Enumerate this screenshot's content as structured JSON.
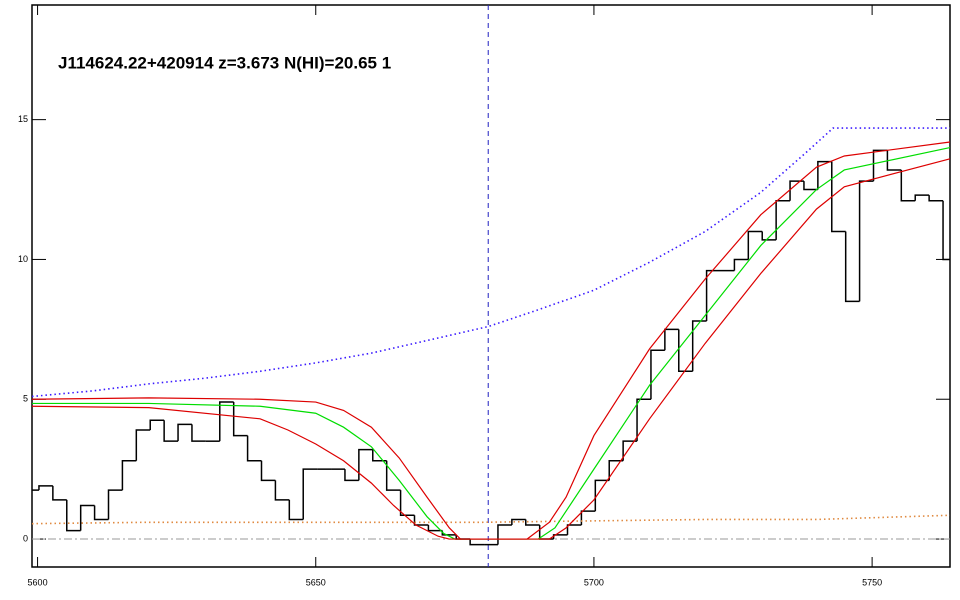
{
  "chart_data": {
    "type": "line",
    "annotation": "J114624.22+420914 z=3.673 N(HI)=20.65 1",
    "xlim": [
      5599,
      5764
    ],
    "ylim": [
      -1,
      19.1
    ],
    "xticks": [
      5600,
      5650,
      5700,
      5750
    ],
    "yticks": [
      0,
      5,
      10,
      15
    ],
    "vline": 5681,
    "hline": 0,
    "series": [
      {
        "style": "steps",
        "color": "#000000",
        "x": [
          5599,
          5601.5,
          5604,
          5606.5,
          5609,
          5611.5,
          5614,
          5616.5,
          5619,
          5621.5,
          5624,
          5626.5,
          5629,
          5631.5,
          5634,
          5636.5,
          5639,
          5641.5,
          5644,
          5646.5,
          5649,
          5651.5,
          5654,
          5656.5,
          5659,
          5661.5,
          5664,
          5666.5,
          5669,
          5671.5,
          5674,
          5676.5,
          5679,
          5681.5,
          5684,
          5686.5,
          5689,
          5691.5,
          5694,
          5696.5,
          5699,
          5701.5,
          5704,
          5706.5,
          5709,
          5711.5,
          5714,
          5716.5,
          5719,
          5721.5,
          5724,
          5726.5,
          5729,
          5731.5,
          5734,
          5736.5,
          5739,
          5741.5,
          5744,
          5746.5,
          5749,
          5751.5,
          5754,
          5756.5,
          5759,
          5761.5,
          5764
        ],
        "values": [
          1.75,
          1.9,
          1.4,
          0.3,
          1.2,
          0.7,
          1.75,
          2.8,
          3.9,
          4.25,
          3.5,
          4.1,
          3.5,
          3.5,
          4.9,
          3.7,
          2.8,
          2.1,
          1.4,
          0.7,
          2.5,
          2.5,
          2.5,
          2.1,
          3.2,
          2.8,
          1.75,
          0.85,
          0.5,
          0.3,
          0.15,
          0,
          -0.2,
          -0.2,
          0.5,
          0.7,
          0.5,
          0,
          0.15,
          0.5,
          1.0,
          2.1,
          2.8,
          3.5,
          5.0,
          6.75,
          7.5,
          6.0,
          7.8,
          9.6,
          9.6,
          10.0,
          11.0,
          10.7,
          12.1,
          12.8,
          12.5,
          13.5,
          11.0,
          8.5,
          12.8,
          13.9,
          13.2,
          12.1,
          12.3,
          12.1,
          10.0
        ]
      },
      {
        "style": "dotted",
        "color": "#3a1aff",
        "x": [
          5599,
          5610,
          5620,
          5630,
          5640,
          5650,
          5660,
          5670,
          5681,
          5690,
          5700,
          5710,
          5720,
          5730,
          5738,
          5743,
          5764
        ],
        "values": [
          5.1,
          5.3,
          5.55,
          5.75,
          6.0,
          6.3,
          6.65,
          7.1,
          7.6,
          8.2,
          8.9,
          9.9,
          11.0,
          12.4,
          13.8,
          14.7,
          14.7
        ]
      },
      {
        "style": "dotted",
        "color": "#e08a40",
        "x": [
          5599,
          5620,
          5640,
          5660,
          5680,
          5700,
          5720,
          5740,
          5764
        ],
        "values": [
          0.55,
          0.6,
          0.6,
          0.6,
          0.6,
          0.65,
          0.7,
          0.7,
          0.85
        ]
      },
      {
        "style": "solid",
        "color": "#00dd00",
        "x": [
          5599,
          5620,
          5640,
          5650,
          5655,
          5660,
          5665,
          5670,
          5673,
          5675,
          5690,
          5693,
          5700,
          5710,
          5720,
          5730,
          5740,
          5745,
          5764
        ],
        "values": [
          4.85,
          4.85,
          4.75,
          4.5,
          4.0,
          3.3,
          2.1,
          0.8,
          0.2,
          0,
          0,
          0.4,
          2.5,
          5.5,
          8.0,
          10.5,
          12.5,
          13.2,
          14.0
        ]
      },
      {
        "style": "solid",
        "color": "#dd0000",
        "x": [
          5599,
          5620,
          5640,
          5650,
          5655,
          5660,
          5665,
          5670,
          5674,
          5676,
          5688,
          5692,
          5695,
          5700,
          5710,
          5720,
          5730,
          5740,
          5745,
          5764
        ],
        "values": [
          5.0,
          5.05,
          5.0,
          4.9,
          4.6,
          4.0,
          2.9,
          1.5,
          0.4,
          0,
          0,
          0.6,
          1.5,
          3.7,
          6.8,
          9.3,
          11.6,
          13.3,
          13.7,
          14.2
        ]
      },
      {
        "style": "solid",
        "color": "#dd0000",
        "x": [
          5599,
          5620,
          5640,
          5645,
          5650,
          5655,
          5660,
          5664,
          5668,
          5672,
          5674,
          5692,
          5695,
          5700,
          5710,
          5720,
          5730,
          5740,
          5745,
          5764
        ],
        "values": [
          4.75,
          4.7,
          4.3,
          3.9,
          3.4,
          2.8,
          2.0,
          1.2,
          0.5,
          0.1,
          0,
          0,
          0.4,
          1.4,
          4.3,
          7.0,
          9.5,
          11.8,
          12.6,
          13.6
        ]
      }
    ]
  }
}
